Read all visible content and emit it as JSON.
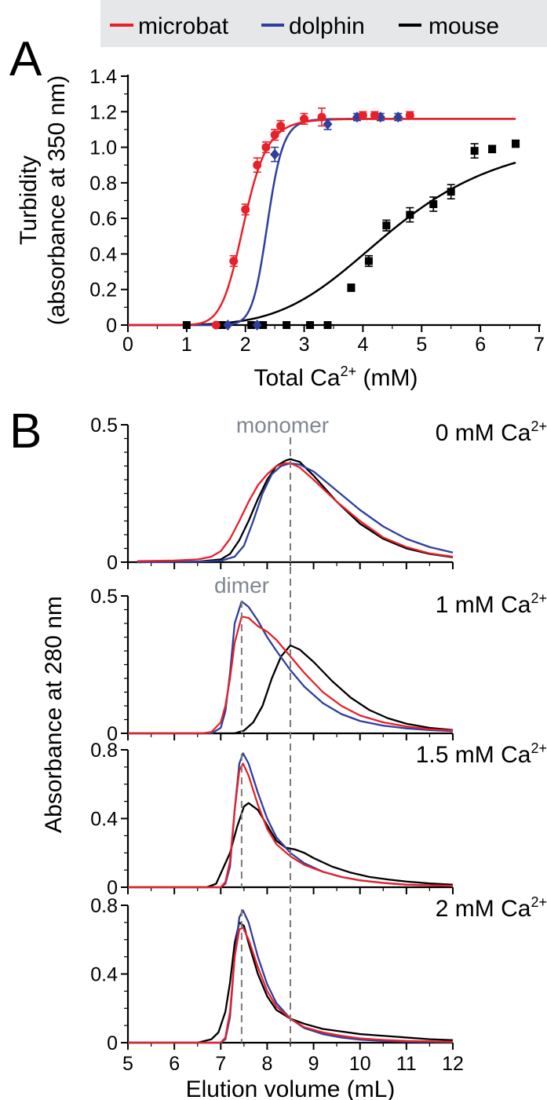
{
  "legend": {
    "items": [
      {
        "label": "microbat",
        "color": "#e8202a"
      },
      {
        "label": "dolphin",
        "color": "#2e3f9c"
      },
      {
        "label": "mouse",
        "color": "#000000"
      }
    ]
  },
  "panel_a": {
    "letter": "A"
  },
  "panel_b": {
    "letter": "B"
  },
  "chart_data": [
    {
      "type": "scatter",
      "panel": "A",
      "xlabel": "Total Ca2+ (mM)",
      "ylabel_line1": "Turbidity",
      "ylabel_line2": "(absorbance at 350 nm)",
      "xlim": [
        0,
        7
      ],
      "ylim": [
        0,
        1.4
      ],
      "xticks": [
        "0",
        "1",
        "2",
        "3",
        "4",
        "5",
        "6",
        "7"
      ],
      "yticks": [
        "0",
        "0.2",
        "0.4",
        "0.6",
        "0.8",
        "1.0",
        "1.2",
        "1.4"
      ],
      "series": [
        {
          "name": "microbat",
          "color": "#e8202a",
          "marker": "circle",
          "points": [
            [
              1.5,
              0.0
            ],
            [
              1.8,
              0.36
            ],
            [
              2.0,
              0.65
            ],
            [
              2.2,
              0.9
            ],
            [
              2.35,
              1.0
            ],
            [
              2.5,
              1.07
            ],
            [
              2.6,
              1.12
            ],
            [
              3.0,
              1.16
            ],
            [
              3.3,
              1.17
            ],
            [
              4.0,
              1.18
            ],
            [
              4.2,
              1.18
            ],
            [
              4.8,
              1.18
            ]
          ],
          "errors": [
            0,
            0.03,
            0.03,
            0.04,
            0.03,
            0.03,
            0.03,
            0.03,
            0.05,
            0.02,
            0.02,
            0.02
          ],
          "fit": {
            "bottom": 0,
            "top": 1.16,
            "ec50": 1.98,
            "hill": 10
          }
        },
        {
          "name": "dolphin",
          "color": "#2e3f9c",
          "marker": "diamond",
          "points": [
            [
              1.7,
              0.0
            ],
            [
              2.2,
              0.0
            ],
            [
              2.5,
              0.96
            ],
            [
              3.4,
              1.13
            ],
            [
              3.9,
              1.17
            ],
            [
              4.3,
              1.17
            ],
            [
              4.6,
              1.17
            ]
          ],
          "errors": [
            0,
            0,
            0.04,
            0.03,
            0.02,
            0.02,
            0.02
          ],
          "fit": {
            "bottom": 0,
            "top": 1.16,
            "ec50": 2.38,
            "hill": 18
          }
        },
        {
          "name": "mouse",
          "color": "#000000",
          "marker": "square",
          "points": [
            [
              1.0,
              0.0
            ],
            [
              1.6,
              0.0
            ],
            [
              2.1,
              0.0
            ],
            [
              2.3,
              0.0
            ],
            [
              2.7,
              0.0
            ],
            [
              3.1,
              0.0
            ],
            [
              3.4,
              0.0
            ],
            [
              3.8,
              0.21
            ],
            [
              4.1,
              0.36
            ],
            [
              4.4,
              0.56
            ],
            [
              4.8,
              0.62
            ],
            [
              5.2,
              0.68
            ],
            [
              5.5,
              0.75
            ],
            [
              5.9,
              0.98
            ],
            [
              6.2,
              0.99
            ],
            [
              6.6,
              1.02
            ]
          ],
          "errors": [
            0,
            0,
            0,
            0,
            0,
            0,
            0.01,
            0.02,
            0.03,
            0.03,
            0.04,
            0.04,
            0.04,
            0.04,
            0.02,
            0.02
          ],
          "fit": {
            "bottom": 0,
            "top": 1.08,
            "ec50": 4.52,
            "hill": 4.5
          }
        }
      ]
    },
    {
      "type": "line",
      "panel": "B",
      "condition": "0 mM Ca2+",
      "annotation": "monomer",
      "ylim": [
        0,
        0.5
      ],
      "yticks": [
        "0",
        "0.5"
      ],
      "xlim": [
        5,
        12
      ],
      "series": [
        {
          "name": "microbat",
          "color": "#e8202a",
          "x": [
            5.2,
            6.0,
            6.5,
            6.8,
            7.0,
            7.2,
            7.4,
            7.6,
            7.8,
            8.0,
            8.2,
            8.4,
            8.5,
            8.7,
            9.0,
            9.5,
            10.0,
            10.5,
            11.0,
            11.5,
            12.0
          ],
          "y": [
            0.004,
            0.006,
            0.01,
            0.02,
            0.04,
            0.085,
            0.15,
            0.22,
            0.28,
            0.32,
            0.35,
            0.36,
            0.36,
            0.345,
            0.3,
            0.22,
            0.15,
            0.09,
            0.055,
            0.032,
            0.02
          ]
        },
        {
          "name": "dolphin",
          "color": "#2e3f9c",
          "x": [
            5.2,
            6.5,
            7.0,
            7.3,
            7.5,
            7.7,
            7.9,
            8.1,
            8.3,
            8.5,
            8.7,
            9.0,
            9.5,
            10.0,
            10.5,
            11.0,
            11.5,
            12.0
          ],
          "y": [
            0.0,
            0.002,
            0.005,
            0.02,
            0.06,
            0.15,
            0.25,
            0.32,
            0.35,
            0.36,
            0.355,
            0.33,
            0.26,
            0.19,
            0.13,
            0.085,
            0.055,
            0.035
          ]
        },
        {
          "name": "mouse",
          "color": "#000000",
          "x": [
            5.2,
            6.5,
            7.0,
            7.2,
            7.4,
            7.6,
            7.8,
            8.0,
            8.2,
            8.4,
            8.5,
            8.7,
            9.0,
            9.5,
            10.0,
            10.5,
            11.0,
            11.5,
            12.0
          ],
          "y": [
            0.0,
            0.002,
            0.01,
            0.03,
            0.08,
            0.15,
            0.23,
            0.3,
            0.35,
            0.37,
            0.375,
            0.365,
            0.315,
            0.22,
            0.14,
            0.085,
            0.05,
            0.03,
            0.018
          ]
        }
      ]
    },
    {
      "type": "line",
      "panel": "B",
      "condition": "1 mM Ca2+",
      "annotation": "dimer",
      "ylim": [
        0,
        0.5
      ],
      "yticks": [
        "0",
        "0.5"
      ],
      "xlim": [
        5,
        12
      ],
      "series": [
        {
          "name": "microbat",
          "color": "#e8202a",
          "x": [
            5.0,
            6.6,
            6.8,
            7.0,
            7.1,
            7.2,
            7.3,
            7.45,
            7.6,
            7.8,
            8.0,
            8.2,
            8.5,
            8.8,
            9.2,
            9.6,
            10.0,
            10.5,
            11.0,
            11.5,
            12.0
          ],
          "y": [
            0.0,
            0.0,
            0.005,
            0.04,
            0.1,
            0.2,
            0.33,
            0.425,
            0.42,
            0.39,
            0.37,
            0.34,
            0.28,
            0.22,
            0.15,
            0.1,
            0.065,
            0.04,
            0.025,
            0.015,
            0.01
          ]
        },
        {
          "name": "dolphin",
          "color": "#2e3f9c",
          "x": [
            5.0,
            6.8,
            7.0,
            7.1,
            7.2,
            7.3,
            7.45,
            7.6,
            7.8,
            8.0,
            8.2,
            8.5,
            8.8,
            9.2,
            9.6,
            10.0,
            10.5,
            11.0,
            11.5,
            12.0
          ],
          "y": [
            0.0,
            0.0,
            0.02,
            0.08,
            0.22,
            0.4,
            0.48,
            0.46,
            0.41,
            0.35,
            0.3,
            0.23,
            0.17,
            0.11,
            0.07,
            0.045,
            0.028,
            0.018,
            0.012,
            0.008
          ]
        },
        {
          "name": "mouse",
          "color": "#000000",
          "x": [
            5.0,
            7.3,
            7.5,
            7.7,
            7.9,
            8.1,
            8.3,
            8.5,
            8.7,
            9.0,
            9.4,
            9.8,
            10.2,
            10.6,
            11.0,
            11.5,
            12.0
          ],
          "y": [
            0.0,
            0.0,
            0.01,
            0.04,
            0.1,
            0.2,
            0.28,
            0.32,
            0.305,
            0.26,
            0.19,
            0.13,
            0.085,
            0.055,
            0.035,
            0.02,
            0.012
          ]
        }
      ]
    },
    {
      "type": "line",
      "panel": "B",
      "condition": "1.5 mM Ca2+",
      "ylim": [
        0,
        0.8
      ],
      "yticks": [
        "0",
        "0.4",
        "0.8"
      ],
      "xlim": [
        5,
        12
      ],
      "series": [
        {
          "name": "microbat",
          "color": "#e8202a",
          "x": [
            5.0,
            7.0,
            7.1,
            7.2,
            7.3,
            7.4,
            7.48,
            7.6,
            7.8,
            8.0,
            8.2,
            8.5,
            8.8,
            9.2,
            9.6,
            10.0,
            10.5,
            11.0,
            12.0
          ],
          "y": [
            0.0,
            0.0,
            0.03,
            0.15,
            0.45,
            0.68,
            0.72,
            0.65,
            0.48,
            0.34,
            0.25,
            0.18,
            0.13,
            0.09,
            0.06,
            0.04,
            0.025,
            0.015,
            0.008
          ]
        },
        {
          "name": "dolphin",
          "color": "#2e3f9c",
          "x": [
            5.0,
            7.0,
            7.1,
            7.2,
            7.3,
            7.4,
            7.48,
            7.6,
            7.8,
            8.0,
            8.2,
            8.5,
            8.8,
            9.2,
            9.6,
            10.0,
            10.5,
            11.0,
            12.0
          ],
          "y": [
            0.0,
            0.0,
            0.02,
            0.12,
            0.45,
            0.72,
            0.78,
            0.72,
            0.55,
            0.4,
            0.29,
            0.2,
            0.14,
            0.09,
            0.06,
            0.04,
            0.025,
            0.015,
            0.008
          ]
        },
        {
          "name": "mouse",
          "color": "#000000",
          "x": [
            5.0,
            6.7,
            6.9,
            7.0,
            7.2,
            7.35,
            7.5,
            7.6,
            7.8,
            8.0,
            8.2,
            8.4,
            8.6,
            8.8,
            9.0,
            9.4,
            9.8,
            10.2,
            10.6,
            11.0,
            11.5,
            12.0
          ],
          "y": [
            0.0,
            0.0,
            0.02,
            0.08,
            0.2,
            0.35,
            0.47,
            0.49,
            0.45,
            0.36,
            0.27,
            0.23,
            0.22,
            0.2,
            0.17,
            0.12,
            0.085,
            0.06,
            0.045,
            0.033,
            0.022,
            0.015
          ]
        }
      ]
    },
    {
      "type": "line",
      "panel": "B",
      "condition": "2 mM Ca2+",
      "ylim": [
        0,
        0.8
      ],
      "yticks": [
        "0",
        "0.4",
        "0.8"
      ],
      "xlim": [
        5,
        12
      ],
      "xlabel": "Elution volume (mL)",
      "xticks": [
        "5",
        "6",
        "7",
        "8",
        "9",
        "10",
        "11",
        "12"
      ],
      "series": [
        {
          "name": "microbat",
          "color": "#e8202a",
          "x": [
            5.0,
            7.0,
            7.1,
            7.2,
            7.3,
            7.4,
            7.48,
            7.6,
            7.8,
            8.0,
            8.2,
            8.5,
            8.8,
            9.2,
            9.6,
            10.0,
            10.5,
            11.0,
            12.0
          ],
          "y": [
            0.0,
            0.0,
            0.03,
            0.18,
            0.5,
            0.66,
            0.67,
            0.6,
            0.44,
            0.3,
            0.21,
            0.14,
            0.09,
            0.06,
            0.04,
            0.025,
            0.016,
            0.01,
            0.005
          ]
        },
        {
          "name": "dolphin",
          "color": "#2e3f9c",
          "x": [
            5.0,
            7.0,
            7.1,
            7.2,
            7.3,
            7.4,
            7.48,
            7.6,
            7.8,
            8.0,
            8.2,
            8.5,
            8.8,
            9.2,
            9.6,
            10.0,
            10.5,
            11.0,
            12.0
          ],
          "y": [
            0.0,
            0.0,
            0.02,
            0.15,
            0.5,
            0.73,
            0.77,
            0.7,
            0.5,
            0.34,
            0.23,
            0.14,
            0.085,
            0.05,
            0.03,
            0.018,
            0.01,
            0.006,
            0.003
          ]
        },
        {
          "name": "mouse",
          "color": "#000000",
          "x": [
            5.0,
            6.5,
            6.8,
            6.95,
            7.1,
            7.2,
            7.3,
            7.4,
            7.5,
            7.6,
            7.8,
            8.0,
            8.2,
            8.5,
            8.8,
            9.2,
            9.6,
            10.0,
            10.5,
            11.0,
            11.5,
            12.0
          ],
          "y": [
            0.0,
            0.0,
            0.02,
            0.06,
            0.18,
            0.35,
            0.58,
            0.7,
            0.68,
            0.58,
            0.4,
            0.27,
            0.19,
            0.14,
            0.11,
            0.08,
            0.065,
            0.05,
            0.04,
            0.03,
            0.02,
            0.015
          ]
        }
      ]
    }
  ],
  "panel_b_meta": {
    "ylabel": "Absorbance at 280 nm",
    "monomer_x": 8.5,
    "dimer_x": 7.45
  }
}
